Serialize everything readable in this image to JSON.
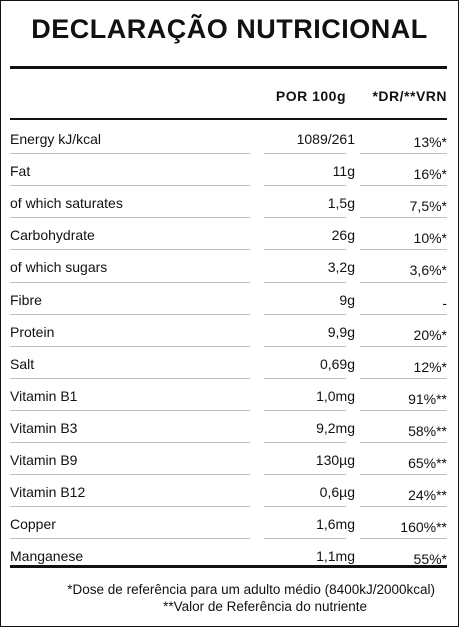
{
  "title": "DECLARAÇÃO NUTRICIONAL",
  "columns": {
    "per100": "POR 100g",
    "dr": "*DR/**VRN"
  },
  "rows": [
    {
      "name": "Energy kJ/kcal",
      "value": "1089/261",
      "dr": "13%*"
    },
    {
      "name": "Fat",
      "value": "11g",
      "dr": "16%*"
    },
    {
      "name": "of which saturates",
      "value": "1,5g",
      "dr": "7,5%*"
    },
    {
      "name": "Carbohydrate",
      "value": "26g",
      "dr": "10%*"
    },
    {
      "name": "of which sugars",
      "value": "3,2g",
      "dr": "3,6%*"
    },
    {
      "name": "Fibre",
      "value": "9g",
      "dr": "-"
    },
    {
      "name": "Protein",
      "value": "9,9g",
      "dr": "20%*"
    },
    {
      "name": "Salt",
      "value": "0,69g",
      "dr": "12%*"
    },
    {
      "name": "Vitamin B1",
      "value": "1,0mg",
      "dr": "91%**"
    },
    {
      "name": "Vitamin B3",
      "value": "9,2mg",
      "dr": "58%**"
    },
    {
      "name": "Vitamin B9",
      "value": "130µg",
      "dr": "65%**"
    },
    {
      "name": "Vitamin B12",
      "value": "0,6µg",
      "dr": "24%**"
    },
    {
      "name": "Copper",
      "value": "1,6mg",
      "dr": "160%**"
    },
    {
      "name": "Manganese",
      "value": "1,1mg",
      "dr": "55%*"
    }
  ],
  "footnotes": {
    "dr": "*Dose de referência para um adulto médio (8400kJ/2000kcal)",
    "vrn": "**Valor de Referência do nutriente"
  }
}
